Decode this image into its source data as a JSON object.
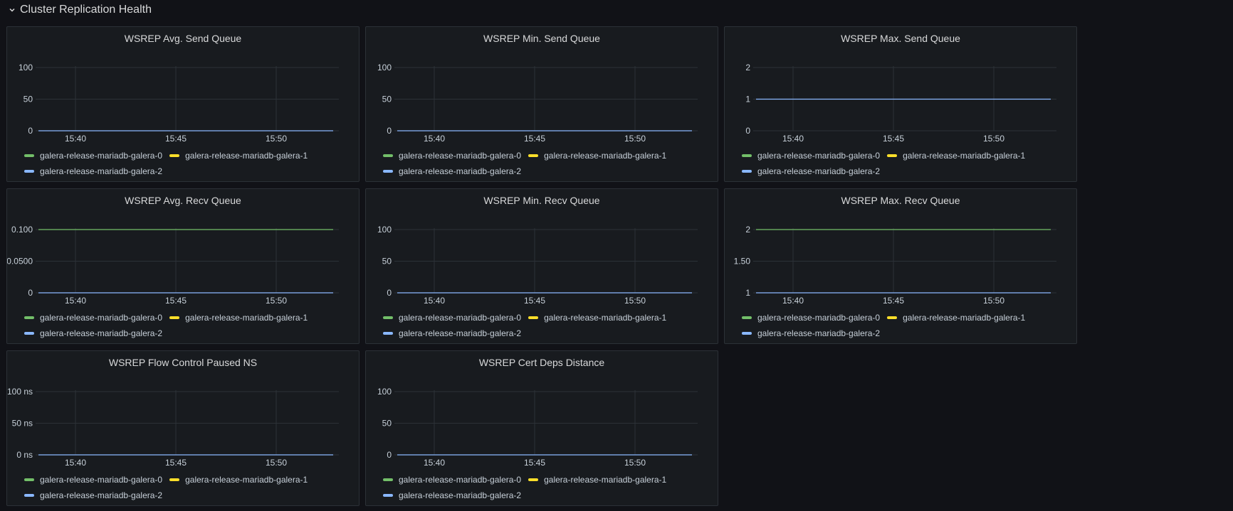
{
  "row": {
    "title": "Cluster Replication Health"
  },
  "colors": {
    "galera-0": "#73bf69",
    "galera-1": "#fade2a",
    "galera-2": "#8ab8ff"
  },
  "legend_series": [
    "galera-release-mariadb-galera-0",
    "galera-release-mariadb-galera-1",
    "galera-release-mariadb-galera-2"
  ],
  "panels": [
    {
      "title": "WSREP Avg. Send Queue",
      "chart_data": {
        "type": "line",
        "x_ticks": [
          "15:40",
          "15:45",
          "15:50"
        ],
        "y_ticks": [
          "100",
          "50",
          "0"
        ],
        "y_values": [
          100,
          50,
          0
        ],
        "ylim": [
          0,
          100
        ],
        "series": [
          {
            "name": "galera-release-mariadb-galera-2",
            "value": 0
          }
        ]
      }
    },
    {
      "title": "WSREP Min. Send Queue",
      "chart_data": {
        "type": "line",
        "x_ticks": [
          "15:40",
          "15:45",
          "15:50"
        ],
        "y_ticks": [
          "100",
          "50",
          "0"
        ],
        "y_values": [
          100,
          50,
          0
        ],
        "ylim": [
          0,
          100
        ],
        "series": [
          {
            "name": "galera-release-mariadb-galera-2",
            "value": 0
          }
        ]
      }
    },
    {
      "title": "WSREP Max. Send Queue",
      "chart_data": {
        "type": "line",
        "x_ticks": [
          "15:40",
          "15:45",
          "15:50"
        ],
        "y_ticks": [
          "2",
          "1",
          "0"
        ],
        "y_values": [
          2,
          1,
          0
        ],
        "ylim": [
          0,
          2
        ],
        "series": [
          {
            "name": "galera-release-mariadb-galera-2",
            "value": 1
          }
        ]
      }
    },
    {
      "title": "WSREP Avg. Recv Queue",
      "chart_data": {
        "type": "line",
        "x_ticks": [
          "15:40",
          "15:45",
          "15:50"
        ],
        "y_ticks": [
          "0.100",
          "0.0500",
          "0"
        ],
        "y_values": [
          0.1,
          0.05,
          0
        ],
        "ylim": [
          0,
          0.1
        ],
        "series": [
          {
            "name": "galera-release-mariadb-galera-0",
            "value": 0.1
          },
          {
            "name": "galera-release-mariadb-galera-2",
            "value": 0
          }
        ]
      }
    },
    {
      "title": "WSREP Min. Recv Queue",
      "chart_data": {
        "type": "line",
        "x_ticks": [
          "15:40",
          "15:45",
          "15:50"
        ],
        "y_ticks": [
          "100",
          "50",
          "0"
        ],
        "y_values": [
          100,
          50,
          0
        ],
        "ylim": [
          0,
          100
        ],
        "series": [
          {
            "name": "galera-release-mariadb-galera-2",
            "value": 0
          }
        ]
      }
    },
    {
      "title": "WSREP Max. Recv Queue",
      "chart_data": {
        "type": "line",
        "x_ticks": [
          "15:40",
          "15:45",
          "15:50"
        ],
        "y_ticks": [
          "2",
          "1.50",
          "1"
        ],
        "y_values": [
          2,
          1.5,
          1
        ],
        "ylim": [
          1,
          2
        ],
        "series": [
          {
            "name": "galera-release-mariadb-galera-0",
            "value": 2
          },
          {
            "name": "galera-release-mariadb-galera-2",
            "value": 1
          }
        ]
      }
    },
    {
      "title": "WSREP Flow Control Paused NS",
      "chart_data": {
        "type": "line",
        "x_ticks": [
          "15:40",
          "15:45",
          "15:50"
        ],
        "y_ticks": [
          "100 ns",
          "50 ns",
          "0 ns"
        ],
        "y_values": [
          100,
          50,
          0
        ],
        "ylim": [
          0,
          100
        ],
        "series": [
          {
            "name": "galera-release-mariadb-galera-2",
            "value": 0
          }
        ]
      }
    },
    {
      "title": "WSREP Cert Deps Distance",
      "chart_data": {
        "type": "line",
        "x_ticks": [
          "15:40",
          "15:45",
          "15:50"
        ],
        "y_ticks": [
          "100",
          "50",
          "0"
        ],
        "y_values": [
          100,
          50,
          0
        ],
        "ylim": [
          0,
          100
        ],
        "series": [
          {
            "name": "galera-release-mariadb-galera-2",
            "value": 0
          }
        ]
      }
    }
  ]
}
